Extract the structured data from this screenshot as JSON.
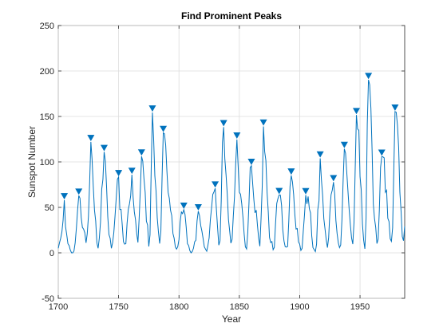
{
  "chart_data": {
    "type": "line",
    "title": "Find Prominent Peaks",
    "xlabel": "Year",
    "ylabel": "Sunspot Number",
    "xlim": [
      1700,
      1987
    ],
    "ylim": [
      -50,
      250
    ],
    "xticks": [
      1700,
      1750,
      1800,
      1850,
      1900,
      1950
    ],
    "yticks": [
      -50,
      0,
      50,
      100,
      150,
      200,
      250
    ],
    "grid": true,
    "line_color": "#0072BD",
    "marker_color": "#0072BD",
    "series": [
      {
        "name": "",
        "x": [
          1700,
          1701,
          1702,
          1703,
          1704,
          1705,
          1706,
          1707,
          1708,
          1709,
          1710,
          1711,
          1712,
          1713,
          1714,
          1715,
          1716,
          1717,
          1718,
          1719,
          1720,
          1721,
          1722,
          1723,
          1724,
          1725,
          1726,
          1727,
          1728,
          1729,
          1730,
          1731,
          1732,
          1733,
          1734,
          1735,
          1736,
          1737,
          1738,
          1739,
          1740,
          1741,
          1742,
          1743,
          1744,
          1745,
          1746,
          1747,
          1748,
          1749,
          1750,
          1751,
          1752,
          1753,
          1754,
          1755,
          1756,
          1757,
          1758,
          1759,
          1760,
          1761,
          1762,
          1763,
          1764,
          1765,
          1766,
          1767,
          1768,
          1769,
          1770,
          1771,
          1772,
          1773,
          1774,
          1775,
          1776,
          1777,
          1778,
          1779,
          1780,
          1781,
          1782,
          1783,
          1784,
          1785,
          1786,
          1787,
          1788,
          1789,
          1790,
          1791,
          1792,
          1793,
          1794,
          1795,
          1796,
          1797,
          1798,
          1799,
          1800,
          1801,
          1802,
          1803,
          1804,
          1805,
          1806,
          1807,
          1808,
          1809,
          1810,
          1811,
          1812,
          1813,
          1814,
          1815,
          1816,
          1817,
          1818,
          1819,
          1820,
          1821,
          1822,
          1823,
          1824,
          1825,
          1826,
          1827,
          1828,
          1829,
          1830,
          1831,
          1832,
          1833,
          1834,
          1835,
          1836,
          1837,
          1838,
          1839,
          1840,
          1841,
          1842,
          1843,
          1844,
          1845,
          1846,
          1847,
          1848,
          1849,
          1850,
          1851,
          1852,
          1853,
          1854,
          1855,
          1856,
          1857,
          1858,
          1859,
          1860,
          1861,
          1862,
          1863,
          1864,
          1865,
          1866,
          1867,
          1868,
          1869,
          1870,
          1871,
          1872,
          1873,
          1874,
          1875,
          1876,
          1877,
          1878,
          1879,
          1880,
          1881,
          1882,
          1883,
          1884,
          1885,
          1886,
          1887,
          1888,
          1889,
          1890,
          1891,
          1892,
          1893,
          1894,
          1895,
          1896,
          1897,
          1898,
          1899,
          1900,
          1901,
          1902,
          1903,
          1904,
          1905,
          1906,
          1907,
          1908,
          1909,
          1910,
          1911,
          1912,
          1913,
          1914,
          1915,
          1916,
          1917,
          1918,
          1919,
          1920,
          1921,
          1922,
          1923,
          1924,
          1925,
          1926,
          1927,
          1928,
          1929,
          1930,
          1931,
          1932,
          1933,
          1934,
          1935,
          1936,
          1937,
          1938,
          1939,
          1940,
          1941,
          1942,
          1943,
          1944,
          1945,
          1946,
          1947,
          1948,
          1949,
          1950,
          1951,
          1952,
          1953,
          1954,
          1955,
          1956,
          1957,
          1958,
          1959,
          1960,
          1961,
          1962,
          1963,
          1964,
          1965,
          1966,
          1967,
          1968,
          1969,
          1970,
          1971,
          1972,
          1973,
          1974,
          1975,
          1976,
          1977,
          1978,
          1979,
          1980,
          1981,
          1982,
          1983,
          1984,
          1985,
          1986,
          1987
        ],
        "y": [
          5,
          11,
          16,
          23,
          36,
          58,
          29,
          20,
          10,
          8,
          3,
          0,
          0,
          2,
          11,
          27,
          47,
          63,
          60,
          39,
          28,
          26,
          22,
          11,
          21,
          40,
          78,
          122,
          103,
          73,
          47,
          35,
          11,
          5,
          16,
          34,
          70,
          81,
          111,
          101,
          73,
          40,
          20,
          16,
          5,
          11,
          22,
          40,
          60,
          80.9,
          83.4,
          47.7,
          47.8,
          30.7,
          12.2,
          9.6,
          10.2,
          32.4,
          47.6,
          54,
          62.9,
          85.9,
          61.2,
          45.1,
          36.4,
          20.9,
          11.4,
          37.8,
          69.8,
          106.1,
          100.8,
          81.6,
          66.5,
          34.8,
          30.6,
          7,
          19.8,
          92.5,
          154.4,
          125.9,
          84.8,
          68.1,
          38.5,
          22.8,
          10.2,
          24.1,
          82.9,
          132,
          130.9,
          118.1,
          89.9,
          66.6,
          60,
          46.9,
          41,
          21.3,
          16,
          6.4,
          4.1,
          6.8,
          14.5,
          34,
          45,
          43.1,
          47.5,
          42.2,
          28.1,
          10.1,
          8.1,
          2.5,
          0,
          1.4,
          5,
          12.2,
          13.9,
          35.4,
          45.8,
          41,
          30.1,
          23.9,
          15.6,
          6.6,
          4,
          1.8,
          8.5,
          16.6,
          36.3,
          49.6,
          64.2,
          67,
          70.9,
          47.8,
          27.5,
          8.5,
          13.2,
          56.9,
          121.5,
          138.3,
          103.2,
          85.7,
          64.6,
          36.7,
          24.2,
          10.7,
          15,
          40.1,
          61.5,
          98.5,
          124.7,
          96.3,
          66.6,
          64.5,
          54.1,
          39,
          20.6,
          6.7,
          4.3,
          22.7,
          54.8,
          93.8,
          95.8,
          77.2,
          59.1,
          44,
          47,
          30.5,
          16.3,
          7.3,
          37.6,
          74,
          139,
          111.2,
          101.6,
          66.2,
          44.7,
          17,
          11.3,
          12.4,
          3.4,
          6,
          32.3,
          54.3,
          59.7,
          63.7,
          63.5,
          52.2,
          25.4,
          13.1,
          6.8,
          6.3,
          7.1,
          35.6,
          73,
          85.1,
          78,
          64,
          41.8,
          26.2,
          26.7,
          12.1,
          9.5,
          2.7,
          5,
          24.4,
          42,
          63.5,
          53.8,
          62,
          48.5,
          43.9,
          18.6,
          5.7,
          3.6,
          1.4,
          9.6,
          47.4,
          57.1,
          103.9,
          80.6,
          63.6,
          37.6,
          26.1,
          14.2,
          5.8,
          16.7,
          44.3,
          63.9,
          69,
          77.8,
          64.9,
          35.7,
          21.2,
          11.1,
          5.7,
          8.7,
          36.1,
          79.7,
          114.4,
          109.6,
          88.8,
          67.8,
          47.5,
          30.6,
          16.3,
          9.6,
          33.2,
          92.6,
          151.6,
          136.3,
          134.7,
          83.9,
          69.4,
          31.5,
          13.9,
          4.4,
          38,
          141.7,
          190.2,
          184.8,
          159,
          112.3,
          53.9,
          37.5,
          27.9,
          10.2,
          15.1,
          47,
          93.8,
          105.9,
          105.5,
          104.5,
          66.6,
          68.9,
          38,
          34.5,
          15.5,
          12.6,
          27.5,
          92.5,
          155.4,
          154.6,
          140.4,
          115.9,
          66.6,
          45.9,
          17.9,
          13.4,
          29.2
        ]
      }
    ],
    "peaks": {
      "x": [
        1705,
        1717,
        1727,
        1738,
        1750,
        1761,
        1769,
        1778,
        1787,
        1804,
        1816,
        1830,
        1837,
        1848,
        1860,
        1870,
        1883,
        1893,
        1905,
        1917,
        1928,
        1937,
        1947,
        1957,
        1968,
        1979
      ],
      "y": [
        58,
        63,
        122,
        111,
        83.4,
        85.9,
        106.1,
        154.4,
        132,
        47.5,
        45.8,
        70.9,
        138.3,
        124.7,
        95.8,
        139,
        63.7,
        85.1,
        63.5,
        103.9,
        77.8,
        114.4,
        151.6,
        190.2,
        105.9,
        155.4
      ]
    }
  }
}
